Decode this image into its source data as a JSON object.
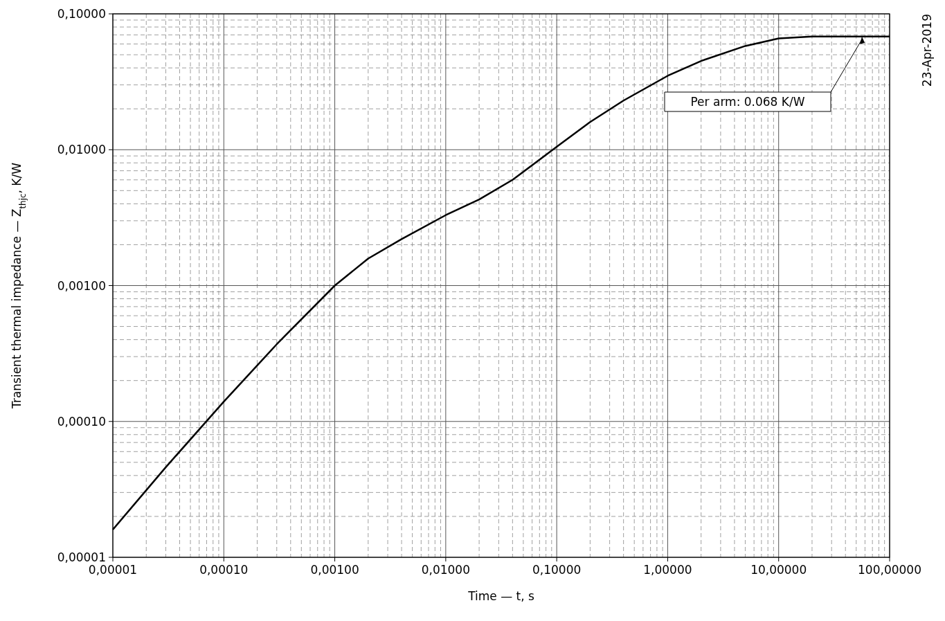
{
  "chart_data": {
    "type": "line",
    "xlabel": "Time — t, s",
    "ylabel": "Transient thermal impedance — Z$_{thjc}$, K/W",
    "log": "xy",
    "grid": true,
    "marker": "none",
    "line_style": "solid",
    "xlim": [
      1e-05,
      100
    ],
    "ylim": [
      1e-05,
      0.1
    ],
    "xticks": [
      {
        "value": 1e-05,
        "label": "0,00001"
      },
      {
        "value": 0.0001,
        "label": "0,00010"
      },
      {
        "value": 0.001,
        "label": "0,00100"
      },
      {
        "value": 0.01,
        "label": "0,01000"
      },
      {
        "value": 0.1,
        "label": "0,10000"
      },
      {
        "value": 1,
        "label": "1,00000"
      },
      {
        "value": 10,
        "label": "10,00000"
      },
      {
        "value": 100,
        "label": "100,00000"
      }
    ],
    "yticks": [
      {
        "value": 1e-05,
        "label": "0,00001"
      },
      {
        "value": 0.0001,
        "label": "0,00010"
      },
      {
        "value": 0.001,
        "label": "0,00100"
      },
      {
        "value": 0.01,
        "label": "0,01000"
      },
      {
        "value": 0.1,
        "label": "0,10000"
      }
    ],
    "x": [
      1e-05,
      3e-05,
      0.0001,
      0.0003,
      0.001,
      0.002,
      0.004,
      0.01,
      0.02,
      0.04,
      0.1,
      0.2,
      0.4,
      1,
      2,
      5,
      10,
      20,
      100
    ],
    "series": [
      {
        "color": "#000000",
        "values": [
          1.6e-05,
          4.6e-05,
          0.00014,
          0.00037,
          0.001,
          0.00158,
          0.0022,
          0.0033,
          0.0043,
          0.006,
          0.0105,
          0.016,
          0.023,
          0.035,
          0.045,
          0.058,
          0.066,
          0.068,
          0.068
        ]
      }
    ],
    "annotations": [
      "Per arm: 0.068 K/W",
      "23-Apr-2019"
    ]
  }
}
